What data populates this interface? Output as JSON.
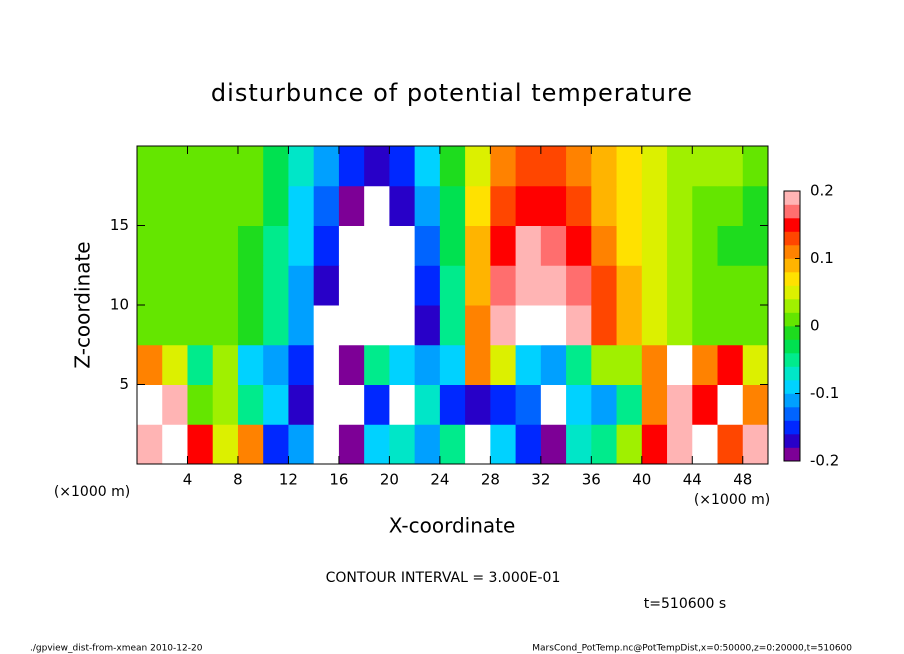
{
  "chart_data": {
    "type": "contour",
    "title": "disturbunce of potential temperature",
    "x_label": "X-coordinate",
    "y_label": "Z-coordinate",
    "x_unit": "(×1000 m)",
    "y_unit": "(×1000 m)",
    "contour_note": "CONTOUR INTERVAL = 3.000E-01",
    "time_note": "t=510600 s",
    "footer_left": "./gpview_dist-from-xmean  2010-12-20",
    "footer_right": "MarsCond_PotTemp.nc@PotTempDist,x=0:50000,z=0:20000,t=510600",
    "xlim": [
      0,
      50
    ],
    "ylim": [
      0,
      20
    ],
    "xticks": [
      4,
      8,
      12,
      16,
      20,
      24,
      28,
      32,
      36,
      40,
      44,
      48
    ],
    "yticks": [
      5,
      10,
      15
    ],
    "x": [
      1,
      3,
      5,
      7,
      9,
      11,
      13,
      15,
      17,
      19,
      21,
      23,
      25,
      27,
      29,
      31,
      33,
      35,
      37,
      39,
      41,
      43,
      45,
      47,
      49
    ],
    "y": [
      1.25,
      3.75,
      6.25,
      8.75,
      11.25,
      13.75,
      16.25,
      18.75
    ],
    "z": [
      [
        0.2,
        0.25,
        0.15,
        0.05,
        0.1,
        -0.15,
        -0.12,
        -0.25,
        -0.2,
        -0.1,
        -0.08,
        -0.12,
        -0.05,
        -0.25,
        -0.1,
        -0.15,
        -0.2,
        -0.08,
        -0.05,
        0.02,
        0.15,
        0.18,
        0.25,
        0.12,
        0.2
      ],
      [
        0.25,
        0.18,
        0.0,
        0.02,
        -0.05,
        -0.1,
        -0.18,
        -0.25,
        -0.22,
        -0.15,
        -0.25,
        -0.08,
        -0.16,
        -0.18,
        -0.15,
        -0.14,
        -0.25,
        -0.1,
        -0.12,
        -0.05,
        0.1,
        0.2,
        0.15,
        0.25,
        0.1
      ],
      [
        0.1,
        0.05,
        -0.05,
        0.02,
        -0.1,
        -0.12,
        -0.15,
        -0.25,
        -0.2,
        -0.05,
        -0.1,
        -0.12,
        -0.1,
        0.1,
        0.05,
        -0.1,
        -0.12,
        -0.05,
        0.02,
        0.03,
        0.1,
        0.25,
        0.1,
        0.15,
        0.05
      ],
      [
        0.0,
        0.01,
        0.0,
        0.01,
        -0.01,
        -0.06,
        -0.12,
        -0.25,
        -0.25,
        -0.25,
        -0.25,
        -0.17,
        -0.06,
        0.1,
        0.18,
        0.25,
        0.25,
        0.19,
        0.13,
        0.09,
        0.05,
        0.03,
        0.01,
        0.0,
        0.01
      ],
      [
        0.0,
        0.0,
        0.0,
        0.0,
        -0.01,
        -0.05,
        -0.11,
        -0.18,
        -0.25,
        -0.25,
        -0.25,
        -0.15,
        -0.05,
        0.09,
        0.16,
        0.2,
        0.2,
        0.17,
        0.12,
        0.08,
        0.05,
        0.02,
        0.01,
        0.0,
        0.0
      ],
      [
        0.01,
        0.0,
        0.0,
        0.0,
        -0.01,
        -0.05,
        -0.1,
        -0.16,
        -0.25,
        -0.25,
        -0.22,
        -0.13,
        -0.04,
        0.08,
        0.15,
        0.18,
        0.17,
        0.14,
        0.1,
        0.07,
        0.04,
        0.02,
        0.0,
        -0.01,
        -0.02
      ],
      [
        0.01,
        0.01,
        0.0,
        0.0,
        0.0,
        -0.04,
        -0.09,
        -0.14,
        -0.19,
        -0.21,
        -0.18,
        -0.11,
        -0.03,
        0.06,
        0.12,
        0.15,
        0.14,
        0.12,
        0.09,
        0.06,
        0.04,
        0.02,
        0.01,
        0.0,
        -0.01
      ],
      [
        0.01,
        0.01,
        0.01,
        0.0,
        0.0,
        -0.03,
        -0.07,
        -0.12,
        -0.16,
        -0.17,
        -0.15,
        -0.09,
        -0.02,
        0.05,
        0.1,
        0.12,
        0.12,
        0.1,
        0.08,
        0.06,
        0.04,
        0.03,
        0.02,
        0.02,
        0.01
      ]
    ],
    "clim": [
      -0.2,
      0.2
    ],
    "cticks": [
      -0.2,
      -0.1,
      0,
      0.1,
      0.2
    ],
    "colors": [
      "#7d0096",
      "#2800c8",
      "#0028ff",
      "#0064ff",
      "#00a0ff",
      "#00d2ff",
      "#00e6c8",
      "#00eb8c",
      "#00e150",
      "#1edc1e",
      "#64e600",
      "#a0f000",
      "#dcf000",
      "#ffe100",
      "#ffb400",
      "#ff8200",
      "#ff4600",
      "#ff0000",
      "#ff6e6e",
      "#ffb4b4"
    ],
    "extend_color": "#ffffff"
  }
}
